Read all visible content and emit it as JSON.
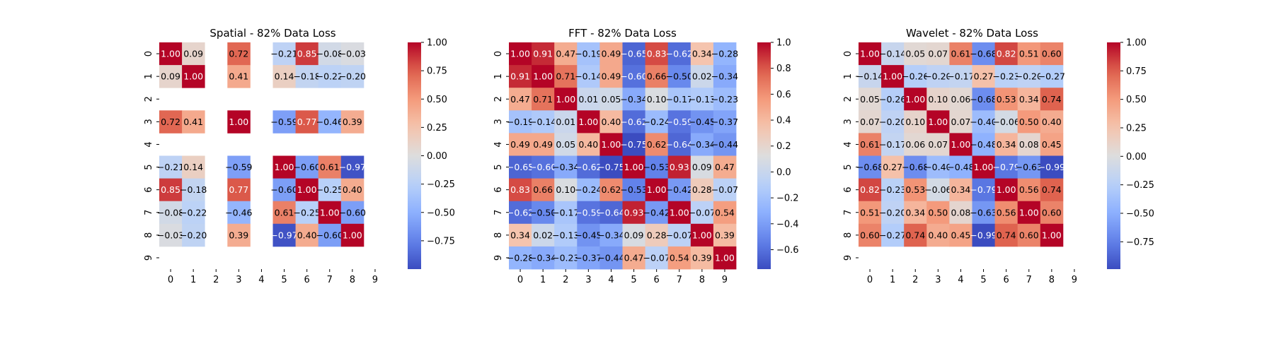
{
  "chart_data": [
    {
      "type": "heatmap",
      "title": "Spatial - 82% Data Loss",
      "x_ticks": [
        "0",
        "1",
        "2",
        "3",
        "4",
        "5",
        "6",
        "7",
        "8",
        "9"
      ],
      "y_ticks": [
        "0",
        "1",
        "2",
        "3",
        "4",
        "5",
        "6",
        "7",
        "8",
        "9"
      ],
      "colormap": "coolwarm",
      "colorbar": {
        "min": -1.0,
        "max": 1.0,
        "ticks": [
          -0.75,
          -0.5,
          -0.25,
          0.0,
          0.25,
          0.5,
          0.75,
          1.0
        ],
        "tick_labels": [
          "−0.75",
          "−0.50",
          "−0.25",
          "0.00",
          "0.25",
          "0.50",
          "0.75",
          "1.00"
        ]
      },
      "matrix": [
        [
          1.0,
          0.09,
          null,
          0.72,
          null,
          -0.21,
          0.85,
          -0.08,
          -0.03,
          null
        ],
        [
          0.09,
          1.0,
          null,
          0.41,
          null,
          0.14,
          -0.18,
          -0.22,
          -0.2,
          null
        ],
        [
          null,
          null,
          null,
          null,
          null,
          null,
          null,
          null,
          null,
          null
        ],
        [
          0.72,
          0.41,
          null,
          1.0,
          null,
          -0.59,
          0.77,
          -0.46,
          0.39,
          null
        ],
        [
          null,
          null,
          null,
          null,
          null,
          null,
          null,
          null,
          null,
          null
        ],
        [
          -0.21,
          0.14,
          null,
          -0.59,
          null,
          1.0,
          -0.6,
          0.61,
          -0.97,
          null
        ],
        [
          0.85,
          -0.18,
          null,
          0.77,
          null,
          -0.6,
          1.0,
          -0.25,
          0.4,
          null
        ],
        [
          -0.08,
          -0.22,
          null,
          -0.46,
          null,
          0.61,
          -0.25,
          1.0,
          -0.6,
          null
        ],
        [
          -0.03,
          -0.2,
          null,
          0.39,
          null,
          -0.97,
          0.4,
          -0.6,
          1.0,
          null
        ],
        [
          null,
          null,
          null,
          null,
          null,
          null,
          null,
          null,
          null,
          null
        ]
      ]
    },
    {
      "type": "heatmap",
      "title": "FFT - 82% Data Loss",
      "x_ticks": [
        "0",
        "1",
        "2",
        "3",
        "4",
        "5",
        "6",
        "7",
        "8",
        "9"
      ],
      "y_ticks": [
        "0",
        "1",
        "2",
        "3",
        "4",
        "5",
        "6",
        "7",
        "8",
        "9"
      ],
      "colormap": "coolwarm",
      "colorbar": {
        "min": -0.75,
        "max": 1.0,
        "ticks": [
          -0.6,
          -0.4,
          -0.2,
          0.0,
          0.2,
          0.4,
          0.6,
          0.8,
          1.0
        ],
        "tick_labels": [
          "−0.6",
          "−0.4",
          "−0.2",
          "0.0",
          "0.2",
          "0.4",
          "0.6",
          "0.8",
          "1.0"
        ]
      },
      "matrix": [
        [
          1.0,
          0.91,
          0.47,
          -0.19,
          0.49,
          -0.65,
          0.83,
          -0.62,
          0.34,
          -0.28
        ],
        [
          0.91,
          1.0,
          0.71,
          -0.14,
          0.49,
          -0.6,
          0.66,
          -0.5,
          0.02,
          -0.34
        ],
        [
          0.47,
          0.71,
          1.0,
          0.01,
          0.05,
          -0.34,
          0.1,
          -0.17,
          -0.13,
          -0.23
        ],
        [
          -0.19,
          -0.14,
          0.01,
          1.0,
          0.4,
          -0.62,
          -0.24,
          -0.59,
          -0.45,
          -0.37
        ],
        [
          0.49,
          0.49,
          0.05,
          0.4,
          1.0,
          -0.75,
          0.62,
          -0.64,
          -0.34,
          -0.44
        ],
        [
          -0.65,
          -0.6,
          -0.34,
          -0.62,
          -0.75,
          1.0,
          -0.53,
          0.93,
          0.09,
          0.47
        ],
        [
          0.83,
          0.66,
          0.1,
          -0.24,
          0.62,
          -0.53,
          1.0,
          -0.42,
          0.28,
          -0.07
        ],
        [
          -0.62,
          -0.5,
          -0.17,
          -0.59,
          -0.64,
          0.93,
          -0.42,
          1.0,
          -0.07,
          0.54
        ],
        [
          0.34,
          0.02,
          -0.13,
          -0.45,
          -0.34,
          0.09,
          0.28,
          -0.07,
          1.0,
          0.39
        ],
        [
          -0.28,
          -0.34,
          -0.23,
          -0.37,
          -0.44,
          0.47,
          -0.07,
          0.54,
          0.39,
          1.0
        ]
      ]
    },
    {
      "type": "heatmap",
      "title": "Wavelet - 82% Data Loss",
      "x_ticks": [
        "0",
        "1",
        "2",
        "3",
        "4",
        "5",
        "6",
        "7",
        "8",
        "9"
      ],
      "y_ticks": [
        "0",
        "1",
        "2",
        "3",
        "4",
        "5",
        "6",
        "7",
        "8",
        "9"
      ],
      "colormap": "coolwarm",
      "colorbar": {
        "min": -0.99,
        "max": 1.0,
        "ticks": [
          -0.75,
          -0.5,
          -0.25,
          0.0,
          0.25,
          0.5,
          0.75,
          1.0
        ],
        "tick_labels": [
          "−0.75",
          "−0.50",
          "−0.25",
          "0.00",
          "0.25",
          "0.50",
          "0.75",
          "1.00"
        ]
      },
      "matrix": [
        [
          1.0,
          -0.14,
          0.05,
          0.07,
          0.61,
          -0.68,
          0.82,
          0.51,
          0.6,
          null
        ],
        [
          -0.14,
          1.0,
          -0.26,
          -0.2,
          -0.17,
          0.27,
          -0.23,
          -0.2,
          -0.27,
          null
        ],
        [
          0.05,
          -0.26,
          1.0,
          0.1,
          0.06,
          -0.68,
          0.53,
          0.34,
          0.74,
          null
        ],
        [
          0.07,
          -0.2,
          0.1,
          1.0,
          0.07,
          -0.4,
          -0.06,
          0.5,
          0.4,
          null
        ],
        [
          0.61,
          -0.17,
          0.06,
          0.07,
          1.0,
          -0.48,
          0.34,
          0.08,
          0.45,
          null
        ],
        [
          -0.68,
          0.27,
          -0.68,
          -0.4,
          -0.48,
          1.0,
          -0.79,
          -0.63,
          -0.99,
          null
        ],
        [
          0.82,
          -0.23,
          0.53,
          -0.06,
          0.34,
          -0.79,
          1.0,
          0.56,
          0.74,
          null
        ],
        [
          0.51,
          -0.2,
          0.34,
          0.5,
          0.08,
          -0.63,
          0.56,
          1.0,
          0.6,
          null
        ],
        [
          0.6,
          -0.27,
          0.74,
          0.4,
          0.45,
          -0.99,
          0.74,
          0.6,
          1.0,
          null
        ],
        [
          null,
          null,
          null,
          null,
          null,
          null,
          null,
          null,
          null,
          null
        ]
      ]
    }
  ]
}
